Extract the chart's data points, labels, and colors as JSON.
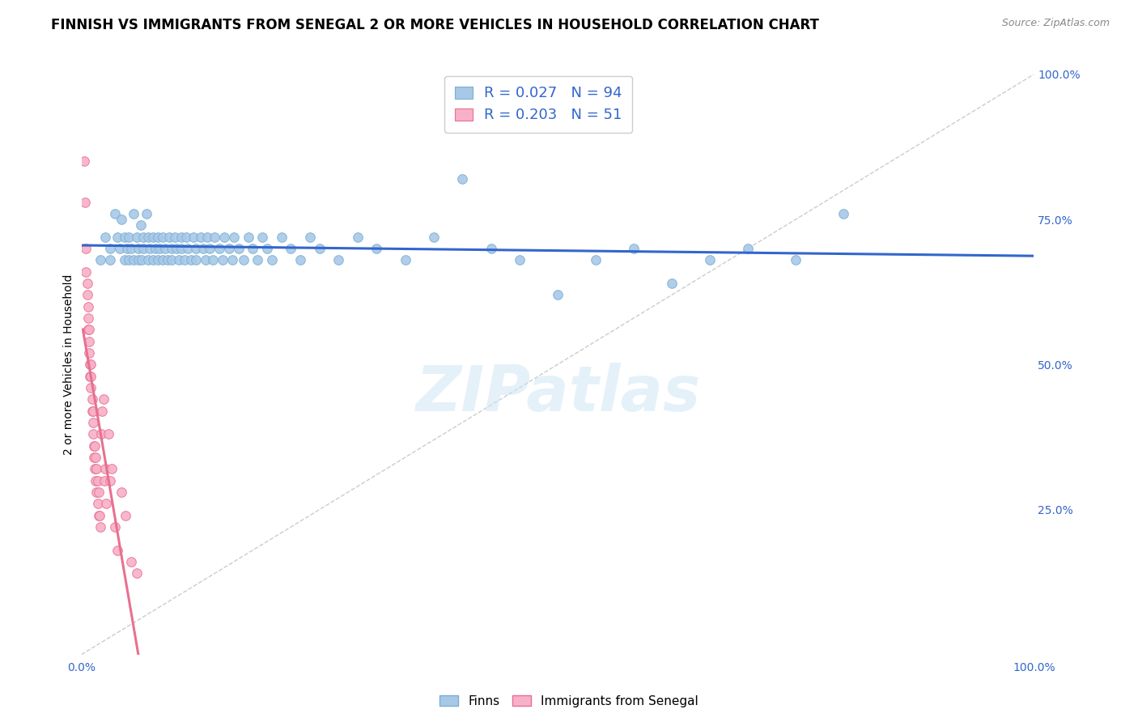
{
  "title": "FINNISH VS IMMIGRANTS FROM SENEGAL 2 OR MORE VEHICLES IN HOUSEHOLD CORRELATION CHART",
  "source": "Source: ZipAtlas.com",
  "ylabel": "2 or more Vehicles in Household",
  "xlim": [
    0,
    1
  ],
  "ylim": [
    0,
    1
  ],
  "x_ticks": [
    0.0,
    0.5,
    1.0
  ],
  "x_tick_labels": [
    "0.0%",
    "",
    "100.0%"
  ],
  "y_tick_positions_right": [
    1.0,
    0.75,
    0.5,
    0.25
  ],
  "y_tick_labels_right": [
    "100.0%",
    "75.0%",
    "50.0%",
    "25.0%"
  ],
  "finn_R": 0.027,
  "finn_N": 94,
  "senegal_R": 0.203,
  "senegal_N": 51,
  "finn_color": "#a8c8e8",
  "finn_edge_color": "#7aafd0",
  "senegal_color": "#f8b0c8",
  "senegal_edge_color": "#e87090",
  "trendline_finn_color": "#3366cc",
  "trendline_senegal_color": "#e87090",
  "diagonal_color": "#cccccc",
  "finn_x": [
    0.02,
    0.025,
    0.03,
    0.03,
    0.035,
    0.038,
    0.04,
    0.042,
    0.045,
    0.045,
    0.048,
    0.05,
    0.05,
    0.052,
    0.055,
    0.055,
    0.058,
    0.06,
    0.06,
    0.062,
    0.063,
    0.065,
    0.065,
    0.068,
    0.07,
    0.07,
    0.072,
    0.075,
    0.075,
    0.078,
    0.08,
    0.08,
    0.082,
    0.085,
    0.085,
    0.088,
    0.09,
    0.092,
    0.095,
    0.095,
    0.098,
    0.1,
    0.102,
    0.105,
    0.105,
    0.108,
    0.11,
    0.112,
    0.115,
    0.118,
    0.12,
    0.12,
    0.125,
    0.128,
    0.13,
    0.132,
    0.135,
    0.138,
    0.14,
    0.145,
    0.148,
    0.15,
    0.155,
    0.158,
    0.16,
    0.165,
    0.17,
    0.175,
    0.18,
    0.185,
    0.19,
    0.195,
    0.2,
    0.21,
    0.22,
    0.23,
    0.24,
    0.25,
    0.27,
    0.29,
    0.31,
    0.34,
    0.37,
    0.4,
    0.43,
    0.46,
    0.5,
    0.54,
    0.58,
    0.62,
    0.66,
    0.7,
    0.75,
    0.8
  ],
  "finn_y": [
    0.68,
    0.72,
    0.7,
    0.68,
    0.76,
    0.72,
    0.7,
    0.75,
    0.68,
    0.72,
    0.7,
    0.68,
    0.72,
    0.7,
    0.76,
    0.68,
    0.72,
    0.7,
    0.68,
    0.74,
    0.68,
    0.72,
    0.7,
    0.76,
    0.68,
    0.72,
    0.7,
    0.68,
    0.72,
    0.7,
    0.68,
    0.72,
    0.7,
    0.68,
    0.72,
    0.7,
    0.68,
    0.72,
    0.7,
    0.68,
    0.72,
    0.7,
    0.68,
    0.72,
    0.7,
    0.68,
    0.72,
    0.7,
    0.68,
    0.72,
    0.7,
    0.68,
    0.72,
    0.7,
    0.68,
    0.72,
    0.7,
    0.68,
    0.72,
    0.7,
    0.68,
    0.72,
    0.7,
    0.68,
    0.72,
    0.7,
    0.68,
    0.72,
    0.7,
    0.68,
    0.72,
    0.7,
    0.68,
    0.72,
    0.7,
    0.68,
    0.72,
    0.7,
    0.68,
    0.72,
    0.7,
    0.68,
    0.72,
    0.82,
    0.7,
    0.68,
    0.62,
    0.68,
    0.7,
    0.64,
    0.68,
    0.7,
    0.68,
    0.76
  ],
  "senegal_x": [
    0.003,
    0.004,
    0.005,
    0.005,
    0.006,
    0.006,
    0.007,
    0.007,
    0.007,
    0.008,
    0.008,
    0.008,
    0.009,
    0.009,
    0.01,
    0.01,
    0.01,
    0.011,
    0.011,
    0.012,
    0.012,
    0.012,
    0.013,
    0.013,
    0.014,
    0.014,
    0.015,
    0.015,
    0.016,
    0.016,
    0.017,
    0.017,
    0.018,
    0.018,
    0.019,
    0.02,
    0.021,
    0.022,
    0.023,
    0.024,
    0.025,
    0.026,
    0.028,
    0.03,
    0.032,
    0.035,
    0.038,
    0.042,
    0.046,
    0.052,
    0.058
  ],
  "senegal_y": [
    0.85,
    0.78,
    0.7,
    0.66,
    0.64,
    0.62,
    0.6,
    0.58,
    0.56,
    0.54,
    0.52,
    0.56,
    0.5,
    0.48,
    0.48,
    0.46,
    0.5,
    0.44,
    0.42,
    0.4,
    0.38,
    0.42,
    0.36,
    0.34,
    0.32,
    0.36,
    0.3,
    0.34,
    0.28,
    0.32,
    0.26,
    0.3,
    0.24,
    0.28,
    0.24,
    0.22,
    0.38,
    0.42,
    0.44,
    0.3,
    0.32,
    0.26,
    0.38,
    0.3,
    0.32,
    0.22,
    0.18,
    0.28,
    0.24,
    0.16,
    0.14
  ],
  "marker_size": 70,
  "grid_color": "#dddddd",
  "background_color": "#ffffff",
  "watermark_text": "ZIPatlas",
  "title_fontsize": 12,
  "axis_label_fontsize": 10,
  "tick_fontsize": 10,
  "legend_fontsize": 13
}
